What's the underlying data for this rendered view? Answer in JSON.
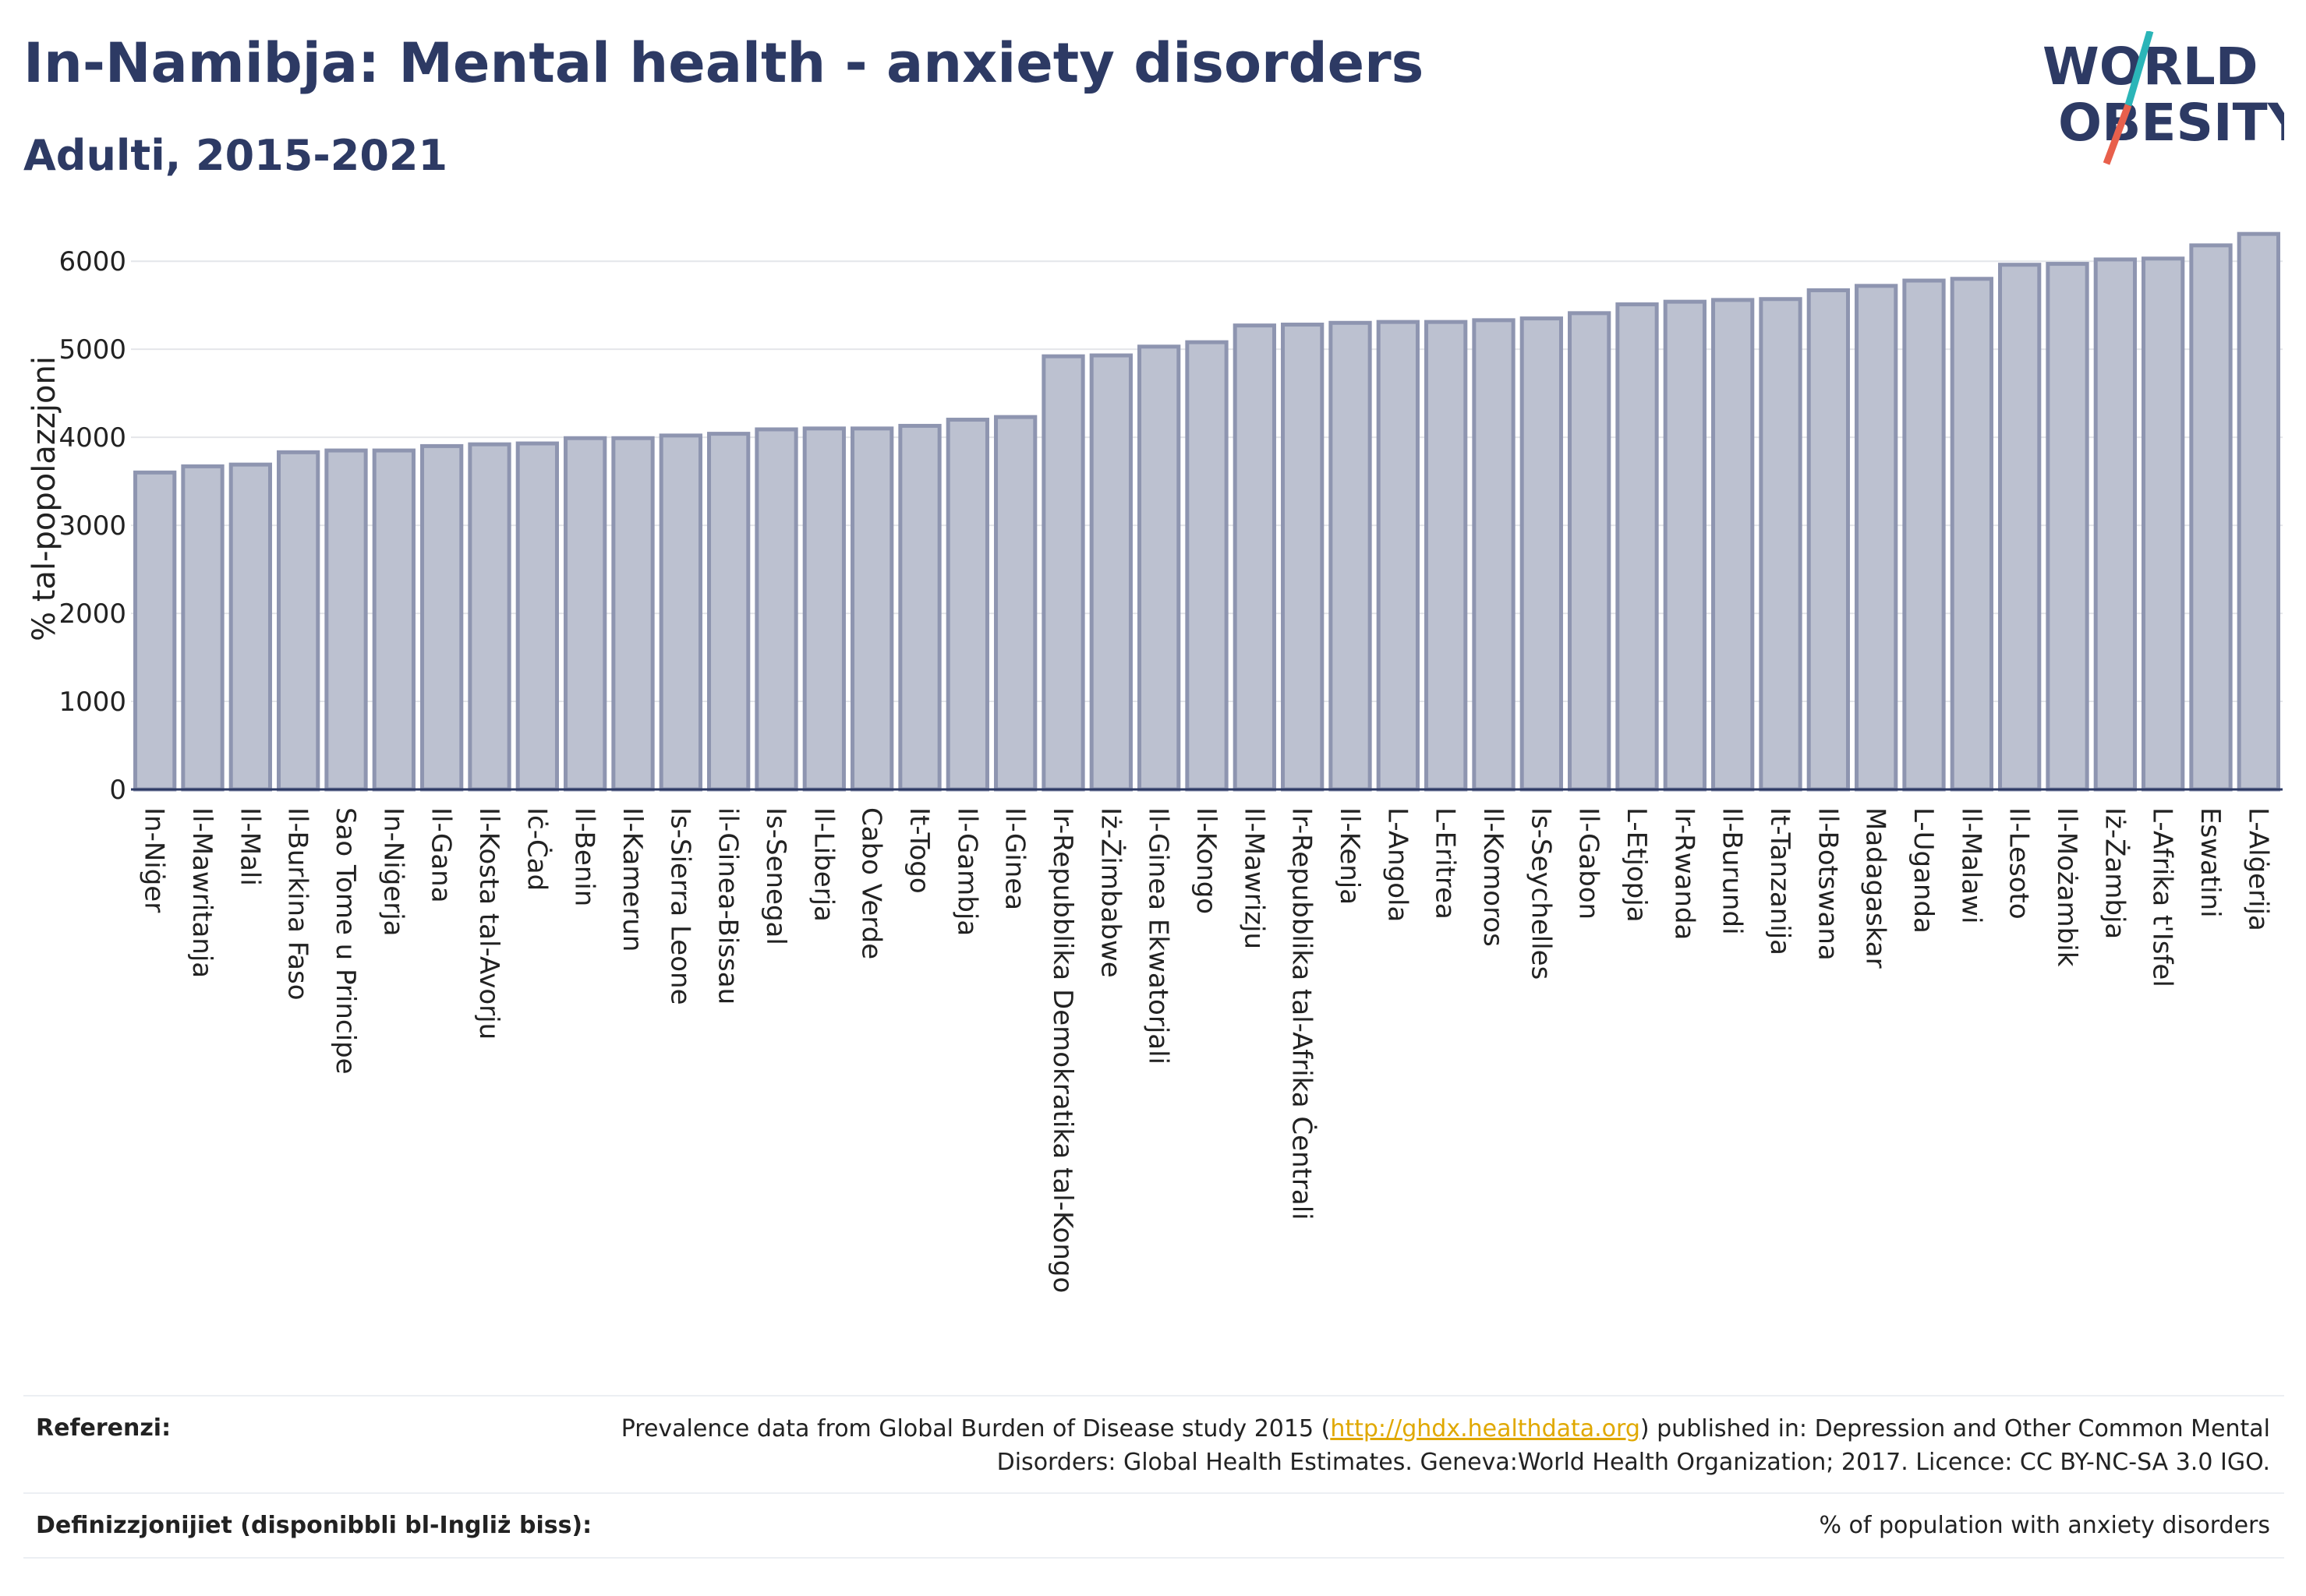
{
  "header": {
    "title": "In-Namibja: Mental health - anxiety disorders",
    "subtitle": "Adulti, 2015-2021"
  },
  "logo": {
    "line1": "WORLD",
    "line2": "OBESITY",
    "colors": {
      "text": "#2d3a64",
      "slash_top": "#2bb5b8",
      "slash_bottom": "#e8604c"
    }
  },
  "colors": {
    "bar_fill": "#bcc1d0",
    "bar_stroke": "#8e95b0",
    "grid": "#e4e6ea",
    "axis": "#2d3a64"
  },
  "chart_data": {
    "type": "bar",
    "title": "In-Namibja: Mental health - anxiety disorders",
    "subtitle": "Adulti, 2015-2021",
    "xlabel": "",
    "ylabel": "% tal-popolazzjoni",
    "ylim": [
      0,
      6400
    ],
    "yticks": [
      0,
      1000,
      2000,
      3000,
      4000,
      5000,
      6000
    ],
    "grid": true,
    "categories": [
      "In-Niġer",
      "Il-Mawritanja",
      "Il-Mali",
      "Il-Burkina Faso",
      "Sao Tome u Principe",
      "In-Niġerja",
      "Il-Gana",
      "Il-Kosta tal-Avorju",
      "Iċ-Ċad",
      "Il-Benin",
      "Il-Kamerun",
      "Is-Sierra Leone",
      "il-Ginea-Bissau",
      "Is-Senegal",
      "Il-Liberja",
      "Cabo Verde",
      "It-Togo",
      "Il-Gambja",
      "Il-Ginea",
      "Ir-Repubblika Demokratika tal-Kongo",
      "Iż-Żimbabwe",
      "Il-Ginea Ekwatorjali",
      "Il-Kongo",
      "Il-Mawrizju",
      "Ir-Repubblika tal-Afrika Ċentrali",
      "Il-Kenja",
      "L-Angola",
      "L-Eritrea",
      "Il-Komoros",
      "Is-Seychelles",
      "Il-Gabon",
      "L-Etjopja",
      "Ir-Rwanda",
      "Il-Burundi",
      "It-Tanzanija",
      "Il-Botswana",
      "Madagaskar",
      "L-Uganda",
      "Il-Malawi",
      "Il-Lesoto",
      "Il-Możambik",
      "Iż-Żambja",
      "L-Afrika t'Isfel",
      "Eswatini",
      "L-Alġerija"
    ],
    "series": [
      {
        "values": [
          3600,
          3670,
          3690,
          3830,
          3850,
          3850,
          3900,
          3920,
          3930,
          3990,
          3990,
          4020,
          4040,
          4090,
          4100,
          4100,
          4130,
          4200,
          4230,
          4920,
          4930,
          5030,
          5080,
          5270,
          5280,
          5300,
          5310,
          5310,
          5330,
          5350,
          5410,
          5510,
          5540,
          5560,
          5570,
          5670,
          5720,
          5780,
          5800,
          5960,
          5970,
          6020,
          6030,
          6180,
          6310
        ]
      }
    ],
    "legend": "none"
  },
  "footer": {
    "references_label": "Referenzi:",
    "references_text_before": "Prevalence data from Global Burden of Disease study 2015 (",
    "references_link": "http://ghdx.healthdata.org",
    "references_text_after": ") published in: Depression and Other Common Mental Disorders: Global Health Estimates. Geneva:World Health Organization; 2017. Licence: CC BY-NC-SA 3.0 IGO.",
    "definitions_label": "Definizzjonijiet (disponibbli bl-Ingliż biss):",
    "definitions_text": "% of population with anxiety disorders"
  }
}
